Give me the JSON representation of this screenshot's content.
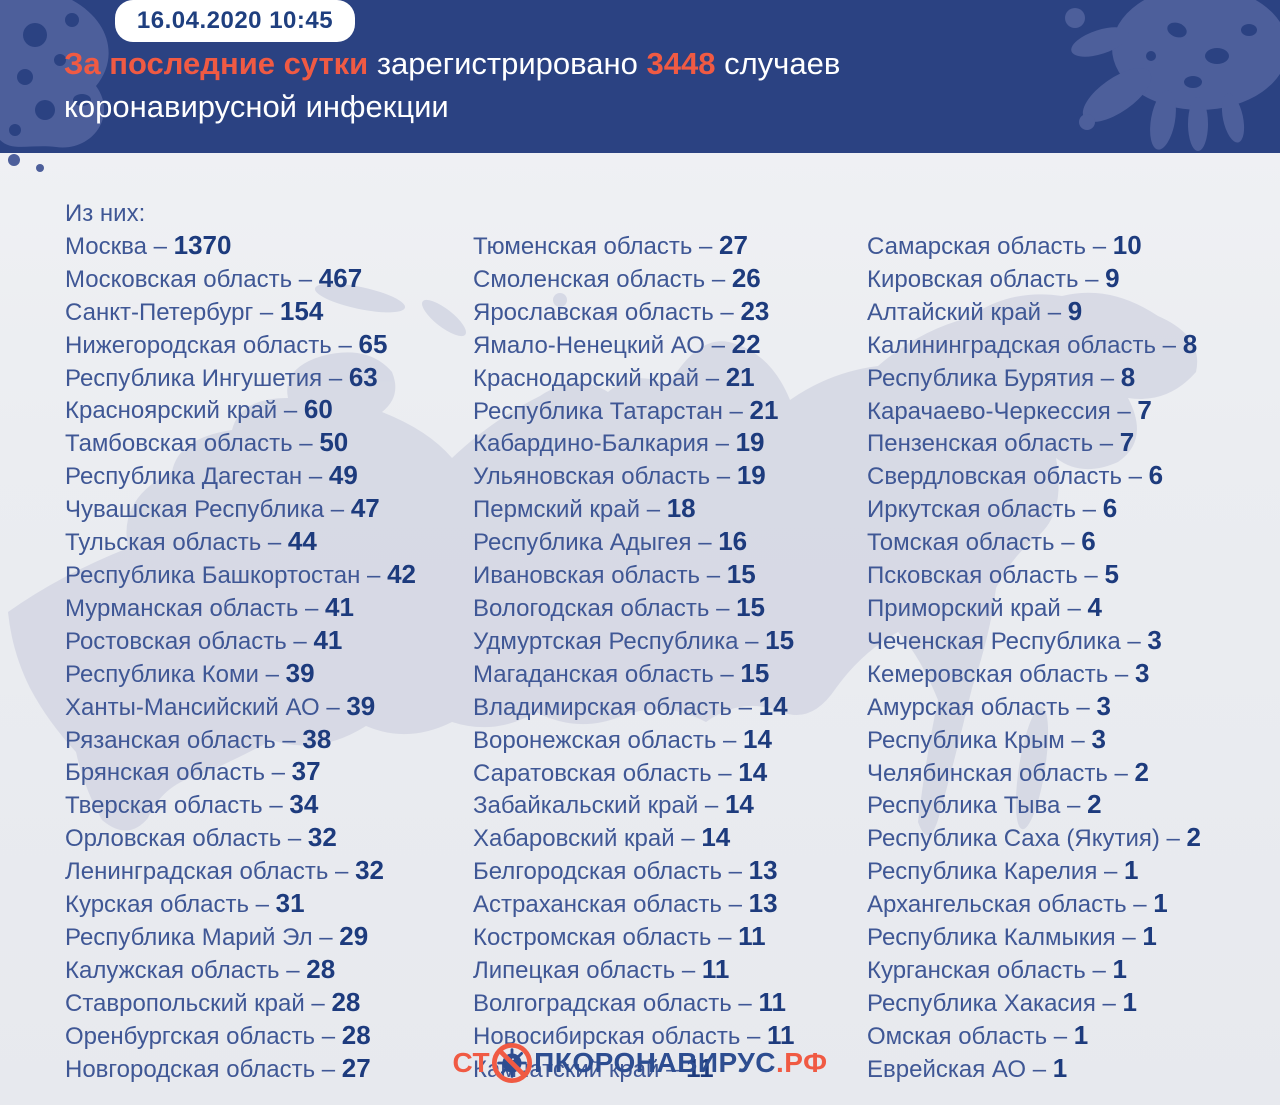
{
  "colors": {
    "header_bg": "#2b4282",
    "header_blob": "#4d5f9b",
    "accent_orange": "#f05a43",
    "badge_text": "#1f3f7f",
    "region_text": "#3f5795",
    "number_text": "#1d3b7d",
    "map_fill": "#d3d6e3",
    "page_bg": "#ebedf1",
    "logo_blue": "#2d4d90"
  },
  "header": {
    "timestamp": "16.04.2020 10:45",
    "title": {
      "accent1": "За последние сутки",
      "normal1": "зарегистрировано",
      "accent2": "3448",
      "normal2": "случаев",
      "line2": "коронавирусной инфекции"
    }
  },
  "list": {
    "intro_label": "Из них:",
    "separator": "–"
  },
  "chart_data": {
    "type": "table",
    "title": "За последние сутки зарегистрировано 3448 случаев коронавирусной инфекции",
    "timestamp": "16.04.2020 10:45",
    "total_new_cases": 3448,
    "columns": [
      [
        {
          "region": "Москва",
          "cases": 1370
        },
        {
          "region": "Московская область",
          "cases": 467
        },
        {
          "region": "Санкт-Петербург",
          "cases": 154
        },
        {
          "region": "Нижегородская область",
          "cases": 65
        },
        {
          "region": "Республика Ингушетия",
          "cases": 63
        },
        {
          "region": "Красноярский край",
          "cases": 60
        },
        {
          "region": "Тамбовская область",
          "cases": 50
        },
        {
          "region": "Республика Дагестан",
          "cases": 49
        },
        {
          "region": "Чувашская Республика",
          "cases": 47
        },
        {
          "region": "Тульская область",
          "cases": 44
        },
        {
          "region": "Республика Башкортостан",
          "cases": 42
        },
        {
          "region": "Мурманская область",
          "cases": 41
        },
        {
          "region": "Ростовская область",
          "cases": 41
        },
        {
          "region": "Республика Коми",
          "cases": 39
        },
        {
          "region": "Ханты-Мансийский АО",
          "cases": 39
        },
        {
          "region": "Рязанская область",
          "cases": 38
        },
        {
          "region": "Брянская область",
          "cases": 37
        },
        {
          "region": "Тверская область",
          "cases": 34
        },
        {
          "region": "Орловская область",
          "cases": 32
        },
        {
          "region": "Ленинградская область",
          "cases": 32
        },
        {
          "region": "Курская область",
          "cases": 31
        },
        {
          "region": "Республика Марий Эл",
          "cases": 29
        },
        {
          "region": "Калужская область",
          "cases": 28
        },
        {
          "region": "Ставропольский край",
          "cases": 28
        },
        {
          "region": "Оренбургская область",
          "cases": 28
        },
        {
          "region": "Новгородская область",
          "cases": 27
        }
      ],
      [
        {
          "region": "Тюменская область",
          "cases": 27
        },
        {
          "region": "Смоленская область",
          "cases": 26
        },
        {
          "region": "Ярославская область",
          "cases": 23
        },
        {
          "region": "Ямало-Ненецкий АО",
          "cases": 22
        },
        {
          "region": "Краснодарский край",
          "cases": 21
        },
        {
          "region": "Республика Татарстан",
          "cases": 21
        },
        {
          "region": "Кабардино-Балкария",
          "cases": 19
        },
        {
          "region": "Ульяновская область",
          "cases": 19
        },
        {
          "region": "Пермский край",
          "cases": 18
        },
        {
          "region": "Республика Адыгея",
          "cases": 16
        },
        {
          "region": "Ивановская область",
          "cases": 15
        },
        {
          "region": "Вологодская область",
          "cases": 15
        },
        {
          "region": "Удмуртская Республика",
          "cases": 15
        },
        {
          "region": "Магаданская область",
          "cases": 15
        },
        {
          "region": "Владимирская область",
          "cases": 14
        },
        {
          "region": "Воронежская область",
          "cases": 14
        },
        {
          "region": "Саратовская область",
          "cases": 14
        },
        {
          "region": "Забайкальский край",
          "cases": 14
        },
        {
          "region": "Хабаровский край",
          "cases": 14
        },
        {
          "region": "Белгородская область",
          "cases": 13
        },
        {
          "region": "Астраханская область",
          "cases": 13
        },
        {
          "region": "Костромская область",
          "cases": 11
        },
        {
          "region": "Липецкая область",
          "cases": 11
        },
        {
          "region": "Волгоградская область",
          "cases": 11
        },
        {
          "region": "Новосибирская область",
          "cases": 11
        },
        {
          "region": "Камчатский край",
          "cases": 11
        }
      ],
      [
        {
          "region": "Самарская область",
          "cases": 10
        },
        {
          "region": "Кировская область",
          "cases": 9
        },
        {
          "region": "Алтайский край",
          "cases": 9
        },
        {
          "region": "Калининградская область",
          "cases": 8
        },
        {
          "region": "Республика Бурятия",
          "cases": 8
        },
        {
          "region": "Карачаево-Черкессия",
          "cases": 7
        },
        {
          "region": "Пензенская область",
          "cases": 7
        },
        {
          "region": "Свердловская область",
          "cases": 6
        },
        {
          "region": "Иркутская область",
          "cases": 6
        },
        {
          "region": "Томская область",
          "cases": 6
        },
        {
          "region": "Псковская область",
          "cases": 5
        },
        {
          "region": "Приморский край",
          "cases": 4
        },
        {
          "region": "Чеченская Республика",
          "cases": 3
        },
        {
          "region": "Кемеровская область",
          "cases": 3
        },
        {
          "region": "Амурская область",
          "cases": 3
        },
        {
          "region": "Республика Крым",
          "cases": 3
        },
        {
          "region": "Челябинская область",
          "cases": 2
        },
        {
          "region": "Республика Тыва",
          "cases": 2
        },
        {
          "region": "Республика Саха (Якутия)",
          "cases": 2
        },
        {
          "region": "Республика Карелия",
          "cases": 1
        },
        {
          "region": "Архангельская область",
          "cases": 1
        },
        {
          "region": "Республика Калмыкия",
          "cases": 1
        },
        {
          "region": "Курганская область",
          "cases": 1
        },
        {
          "region": "Республика Хакасия",
          "cases": 1
        },
        {
          "region": "Омская область",
          "cases": 1
        },
        {
          "region": "Еврейская АО",
          "cases": 1
        }
      ]
    ]
  },
  "footer": {
    "logo": {
      "part1": "СТ",
      "part2": "ПКОРОНАВИРУС",
      "part3": ".РФ",
      "icon": "no-virus-icon"
    }
  }
}
